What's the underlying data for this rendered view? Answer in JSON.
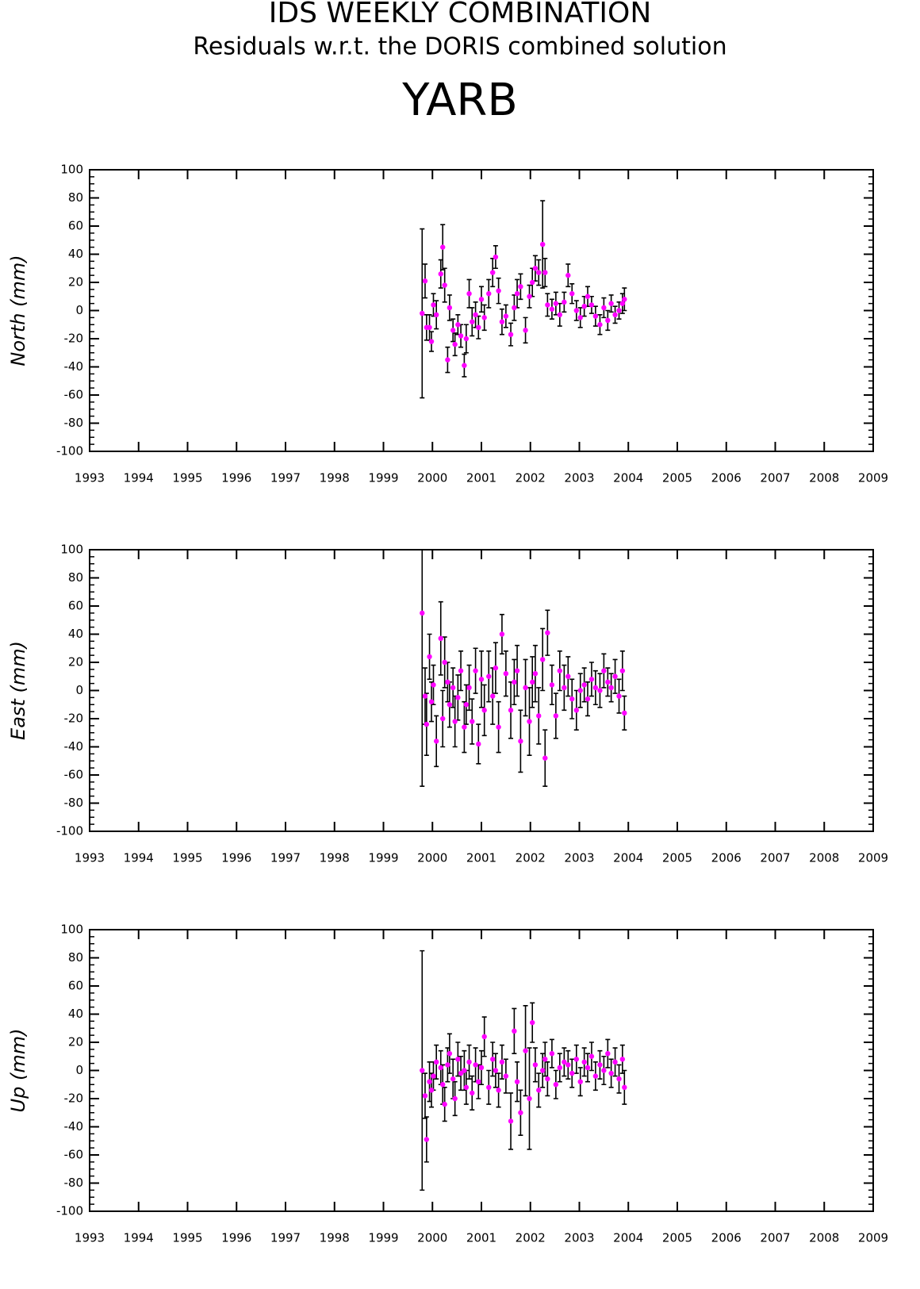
{
  "chart_data": [
    {
      "type": "scatter",
      "suptitle": "IDS WEEKLY COMBINATION",
      "subtitle": "Residuals w.r.t. the DORIS combined solution",
      "title": "YARB",
      "ylabel": "North (mm)",
      "color": "#ff00ff",
      "error_color": "#000000",
      "xlim": [
        1993,
        2009
      ],
      "ylim": [
        -100,
        100
      ],
      "xticks": [
        1993,
        1994,
        1995,
        1996,
        1997,
        1998,
        1999,
        2000,
        2001,
        2002,
        2003,
        2004,
        2005,
        2006,
        2007,
        2008,
        2009
      ],
      "yticks": [
        -100,
        -80,
        -60,
        -40,
        -20,
        0,
        20,
        40,
        60,
        80,
        100
      ],
      "x": [
        1999.79,
        1999.85,
        1999.88,
        1999.94,
        1999.98,
        2000.02,
        2000.08,
        2000.17,
        2000.21,
        2000.25,
        2000.31,
        2000.35,
        2000.42,
        2000.46,
        2000.52,
        2000.58,
        2000.65,
        2000.69,
        2000.75,
        2000.81,
        2000.88,
        2000.94,
        2001.0,
        2001.06,
        2001.15,
        2001.23,
        2001.29,
        2001.35,
        2001.42,
        2001.5,
        2001.6,
        2001.67,
        2001.73,
        2001.8,
        2001.9,
        2001.98,
        2002.04,
        2002.1,
        2002.17,
        2002.25,
        2002.3,
        2002.35,
        2002.44,
        2002.52,
        2002.6,
        2002.69,
        2002.77,
        2002.85,
        2002.94,
        2003.02,
        2003.1,
        2003.17,
        2003.25,
        2003.33,
        2003.42,
        2003.5,
        2003.58,
        2003.65,
        2003.73,
        2003.81,
        2003.88,
        2003.92
      ],
      "values": [
        -2,
        21,
        -12,
        -12,
        -22,
        4,
        -3,
        26,
        45,
        18,
        -35,
        2,
        -14,
        -24,
        -10,
        -18,
        -39,
        -20,
        12,
        -8,
        -3,
        -12,
        8,
        -5,
        12,
        27,
        38,
        14,
        -8,
        -4,
        -17,
        2,
        12,
        17,
        -14,
        10,
        20,
        30,
        27,
        47,
        27,
        4,
        1,
        5,
        -3,
        6,
        25,
        12,
        0,
        -5,
        3,
        10,
        4,
        -4,
        -10,
        2,
        -7,
        5,
        -3,
        0,
        5,
        8
      ],
      "errors": [
        60,
        12,
        9,
        9,
        7,
        8,
        10,
        10,
        16,
        12,
        9,
        9,
        8,
        8,
        7,
        8,
        8,
        10,
        10,
        10,
        9,
        8,
        9,
        9,
        10,
        10,
        8,
        9,
        9,
        8,
        8,
        9,
        10,
        9,
        9,
        8,
        10,
        9,
        9,
        31,
        10,
        8,
        7,
        8,
        8,
        7,
        8,
        7,
        7,
        7,
        7,
        7,
        6,
        7,
        7,
        7,
        7,
        6,
        6,
        6,
        7,
        8
      ]
    },
    {
      "type": "scatter",
      "ylabel": "East (mm)",
      "color": "#ff00ff",
      "error_color": "#000000",
      "xlim": [
        1993,
        2009
      ],
      "ylim": [
        -100,
        100
      ],
      "xticks": [
        1993,
        1994,
        1995,
        1996,
        1997,
        1998,
        1999,
        2000,
        2001,
        2002,
        2003,
        2004,
        2005,
        2006,
        2007,
        2008,
        2009
      ],
      "yticks": [
        -100,
        -80,
        -60,
        -40,
        -20,
        0,
        20,
        40,
        60,
        80,
        100
      ],
      "x": [
        1999.79,
        1999.85,
        1999.88,
        1999.94,
        1999.98,
        2000.02,
        2000.08,
        2000.17,
        2000.21,
        2000.25,
        2000.31,
        2000.35,
        2000.42,
        2000.46,
        2000.52,
        2000.58,
        2000.65,
        2000.69,
        2000.75,
        2000.81,
        2000.88,
        2000.94,
        2001.0,
        2001.06,
        2001.15,
        2001.23,
        2001.29,
        2001.35,
        2001.42,
        2001.5,
        2001.6,
        2001.67,
        2001.73,
        2001.8,
        2001.9,
        2001.98,
        2002.04,
        2002.1,
        2002.17,
        2002.25,
        2002.3,
        2002.35,
        2002.44,
        2002.52,
        2002.6,
        2002.69,
        2002.77,
        2002.85,
        2002.94,
        2003.02,
        2003.1,
        2003.17,
        2003.25,
        2003.33,
        2003.42,
        2003.5,
        2003.58,
        2003.65,
        2003.73,
        2003.81,
        2003.88,
        2003.92
      ],
      "values": [
        55,
        -4,
        -24,
        24,
        -8,
        4,
        -36,
        37,
        -20,
        20,
        6,
        -10,
        2,
        -22,
        -5,
        14,
        -26,
        -10,
        2,
        -22,
        14,
        -38,
        8,
        -14,
        10,
        -4,
        16,
        -26,
        40,
        12,
        -14,
        6,
        14,
        -36,
        2,
        -22,
        6,
        12,
        -18,
        22,
        -48,
        41,
        4,
        -18,
        14,
        2,
        10,
        -6,
        -14,
        0,
        4,
        -6,
        8,
        2,
        0,
        14,
        6,
        2,
        10,
        -4,
        14,
        -16
      ],
      "errors": [
        123,
        20,
        22,
        16,
        14,
        14,
        18,
        26,
        20,
        18,
        14,
        16,
        14,
        18,
        16,
        14,
        18,
        14,
        16,
        16,
        16,
        14,
        20,
        18,
        18,
        20,
        18,
        18,
        14,
        16,
        20,
        16,
        18,
        22,
        20,
        24,
        18,
        20,
        20,
        22,
        20,
        16,
        14,
        16,
        14,
        16,
        14,
        14,
        14,
        12,
        12,
        12,
        12,
        12,
        12,
        12,
        10,
        10,
        12,
        12,
        14,
        12
      ]
    },
    {
      "type": "scatter",
      "ylabel": "Up (mm)",
      "color": "#ff00ff",
      "error_color": "#000000",
      "xlim": [
        1993,
        2009
      ],
      "ylim": [
        -100,
        100
      ],
      "xticks": [
        1993,
        1994,
        1995,
        1996,
        1997,
        1998,
        1999,
        2000,
        2001,
        2002,
        2003,
        2004,
        2005,
        2006,
        2007,
        2008,
        2009
      ],
      "yticks": [
        -100,
        -80,
        -60,
        -40,
        -20,
        0,
        20,
        40,
        60,
        80,
        100
      ],
      "x": [
        1999.79,
        1999.85,
        1999.88,
        1999.94,
        1999.98,
        2000.02,
        2000.08,
        2000.17,
        2000.21,
        2000.25,
        2000.31,
        2000.35,
        2000.42,
        2000.46,
        2000.52,
        2000.58,
        2000.65,
        2000.69,
        2000.75,
        2000.81,
        2000.88,
        2000.94,
        2001.0,
        2001.06,
        2001.15,
        2001.23,
        2001.29,
        2001.35,
        2001.42,
        2001.5,
        2001.6,
        2001.67,
        2001.73,
        2001.8,
        2001.9,
        2001.98,
        2002.04,
        2002.1,
        2002.17,
        2002.25,
        2002.3,
        2002.35,
        2002.44,
        2002.52,
        2002.6,
        2002.69,
        2002.77,
        2002.85,
        2002.94,
        2003.02,
        2003.1,
        2003.17,
        2003.25,
        2003.33,
        2003.42,
        2003.5,
        2003.58,
        2003.65,
        2003.73,
        2003.81,
        2003.88,
        2003.92
      ],
      "values": [
        0,
        -18,
        -49,
        -8,
        -14,
        -4,
        6,
        2,
        -10,
        -24,
        4,
        12,
        -6,
        -20,
        8,
        -2,
        0,
        -12,
        6,
        -16,
        4,
        -8,
        2,
        24,
        -12,
        8,
        0,
        -14,
        6,
        -4,
        -36,
        28,
        -8,
        -30,
        14,
        -20,
        34,
        4,
        -14,
        0,
        8,
        -6,
        12,
        -10,
        2,
        6,
        4,
        -2,
        8,
        -8,
        6,
        2,
        10,
        -4,
        4,
        0,
        12,
        -2,
        6,
        -6,
        8,
        -12
      ],
      "errors": [
        85,
        16,
        16,
        14,
        12,
        10,
        12,
        12,
        14,
        12,
        12,
        14,
        14,
        12,
        12,
        12,
        14,
        12,
        12,
        12,
        12,
        12,
        12,
        14,
        12,
        12,
        12,
        12,
        12,
        12,
        20,
        16,
        14,
        16,
        32,
        36,
        14,
        12,
        12,
        12,
        12,
        12,
        10,
        10,
        10,
        10,
        10,
        10,
        10,
        10,
        10,
        10,
        10,
        10,
        10,
        10,
        10,
        10,
        10,
        10,
        10,
        12
      ]
    }
  ]
}
